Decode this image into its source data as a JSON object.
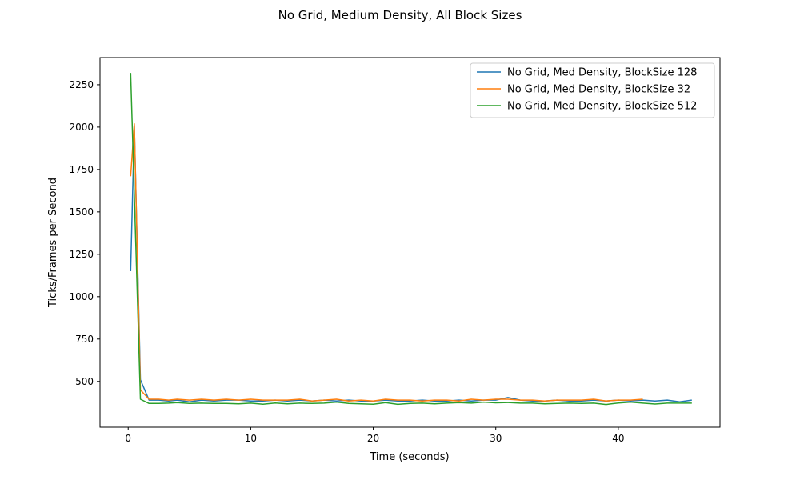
{
  "chart_data": {
    "type": "line",
    "title": "No Grid, Medium Density, All Block Sizes",
    "xlabel": "Time (seconds)",
    "ylabel": "Ticks/Frames per Second",
    "xlim": [
      -2.3,
      48.3
    ],
    "ylim": [
      230,
      2410
    ],
    "xticks": [
      0,
      10,
      20,
      30,
      40
    ],
    "yticks": [
      500,
      750,
      1000,
      1250,
      1500,
      1750,
      2000,
      2250
    ],
    "grid": false,
    "legend_position": "top-right",
    "series": [
      {
        "name": "No Grid, Med Density, BlockSize 128",
        "color": "#1f77b4",
        "x": [
          0.2,
          0.5,
          1.0,
          1.7,
          2.5,
          3.3,
          4.0,
          5.0,
          6.0,
          7.0,
          8.0,
          9.0,
          10.0,
          11.0,
          12.0,
          13.0,
          14.0,
          15.0,
          16.0,
          17.0,
          18.0,
          19.0,
          20.0,
          21.0,
          22.0,
          23.0,
          24.0,
          25.0,
          26.0,
          27.0,
          28.0,
          29.0,
          30.0,
          31.0,
          32.0,
          33.0,
          34.0,
          35.0,
          36.0,
          37.0,
          38.0,
          39.0,
          40.0,
          41.0,
          42.0,
          43.0,
          44.0,
          45.0,
          46.0
        ],
        "y": [
          1150,
          2010,
          510,
          390,
          390,
          385,
          390,
          380,
          390,
          385,
          390,
          390,
          385,
          385,
          390,
          385,
          390,
          385,
          390,
          385,
          390,
          385,
          385,
          390,
          385,
          385,
          390,
          385,
          385,
          390,
          385,
          390,
          390,
          405,
          390,
          385,
          385,
          390,
          385,
          385,
          390,
          385,
          390,
          385,
          390,
          385,
          390,
          380,
          390
        ]
      },
      {
        "name": "No Grid, Med Density, BlockSize 32",
        "color": "#ff7f0e",
        "x": [
          0.2,
          0.5,
          1.0,
          1.7,
          2.5,
          3.3,
          4.0,
          5.0,
          6.0,
          7.0,
          8.0,
          9.0,
          10.0,
          11.0,
          12.0,
          13.0,
          14.0,
          15.0,
          16.0,
          17.0,
          18.0,
          19.0,
          20.0,
          21.0,
          22.0,
          23.0,
          24.0,
          25.0,
          26.0,
          27.0,
          28.0,
          29.0,
          30.0,
          31.0,
          32.0,
          33.0,
          34.0,
          35.0,
          36.0,
          37.0,
          38.0,
          39.0,
          40.0,
          41.0,
          42.0
        ],
        "y": [
          1710,
          2020,
          450,
          395,
          395,
          390,
          395,
          390,
          395,
          390,
          395,
          390,
          395,
          390,
          390,
          390,
          395,
          385,
          390,
          395,
          385,
          390,
          385,
          395,
          390,
          390,
          385,
          390,
          390,
          385,
          395,
          390,
          395,
          395,
          390,
          390,
          385,
          390,
          390,
          390,
          395,
          385,
          390,
          390,
          395
        ]
      },
      {
        "name": "No Grid, Med Density, BlockSize 512",
        "color": "#2ca02c",
        "x": [
          0.2,
          0.5,
          1.0,
          1.7,
          2.5,
          3.3,
          4.0,
          5.0,
          6.0,
          7.0,
          8.0,
          9.0,
          10.0,
          11.0,
          12.0,
          13.0,
          14.0,
          15.0,
          16.0,
          17.0,
          18.0,
          19.0,
          20.0,
          21.0,
          22.0,
          23.0,
          24.0,
          25.0,
          26.0,
          27.0,
          28.0,
          29.0,
          30.0,
          31.0,
          32.0,
          33.0,
          34.0,
          35.0,
          36.0,
          37.0,
          38.0,
          39.0,
          40.0,
          41.0,
          42.0,
          43.0,
          44.0,
          45.0,
          46.0
        ],
        "y": [
          2320,
          1600,
          395,
          370,
          370,
          372,
          375,
          370,
          372,
          370,
          370,
          368,
          372,
          366,
          373,
          368,
          372,
          370,
          372,
          378,
          370,
          368,
          366,
          375,
          365,
          370,
          372,
          368,
          372,
          375,
          372,
          378,
          374,
          376,
          372,
          372,
          368,
          370,
          372,
          370,
          372,
          364,
          373,
          378,
          372,
          367,
          372,
          372,
          372
        ]
      }
    ]
  }
}
